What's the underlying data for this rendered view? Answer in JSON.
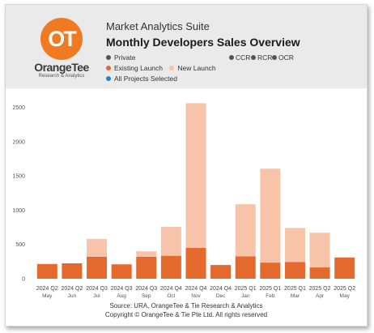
{
  "header": {
    "logo_glyph": "OT",
    "logo_name": "OrangeTee",
    "logo_sub": "Research & Analytics",
    "suite": "Market Analytics Suite",
    "title": "Monthly Developers Sales Overview"
  },
  "filters": {
    "private": "Private",
    "ccr": "CCR",
    "rcr": "RCR",
    "ocr": "OCR",
    "all_projects": "All Projects Selected"
  },
  "colors": {
    "existing": "#e4692c",
    "new": "#f7c4aa",
    "filter_dot": "#555555",
    "selected_dot": "#2a7fd4"
  },
  "footer": {
    "source": "Source: URA, OrangeTee & Tie Research & Analytics",
    "copyright": "Copyright © OrangeTee & Tie Pte Ltd. All rights reserved"
  },
  "chart_data": {
    "type": "bar",
    "stacked": true,
    "title": "Monthly Developers Sales Overview",
    "categories": [
      [
        "2024 Q2",
        "May"
      ],
      [
        "2024 Q2",
        "Jun"
      ],
      [
        "2024 Q3",
        "Jul"
      ],
      [
        "2024 Q3",
        "Aug"
      ],
      [
        "2024 Q3",
        "Sep"
      ],
      [
        "2024 Q4",
        "Oct"
      ],
      [
        "2024 Q4",
        "Nov"
      ],
      [
        "2024 Q4",
        "Dec"
      ],
      [
        "2025 Q1",
        "Jan"
      ],
      [
        "2025 Q1",
        "Feb"
      ],
      [
        "2025 Q1",
        "Mar"
      ],
      [
        "2025 Q2",
        "Apr"
      ],
      [
        "2025 Q2",
        "May"
      ]
    ],
    "series": [
      {
        "name": "Existing Launch",
        "values": [
          215,
          225,
          320,
          210,
          320,
          335,
          450,
          200,
          325,
          235,
          245,
          165,
          310
        ]
      },
      {
        "name": "New Launch",
        "values": [
          0,
          0,
          260,
          0,
          80,
          420,
          2110,
          0,
          760,
          1370,
          495,
          505,
          0
        ]
      }
    ],
    "yticks": [
      0,
      500,
      1000,
      1500,
      2000,
      2500
    ],
    "ylim": [
      0,
      2600
    ],
    "legend": "top-left"
  }
}
